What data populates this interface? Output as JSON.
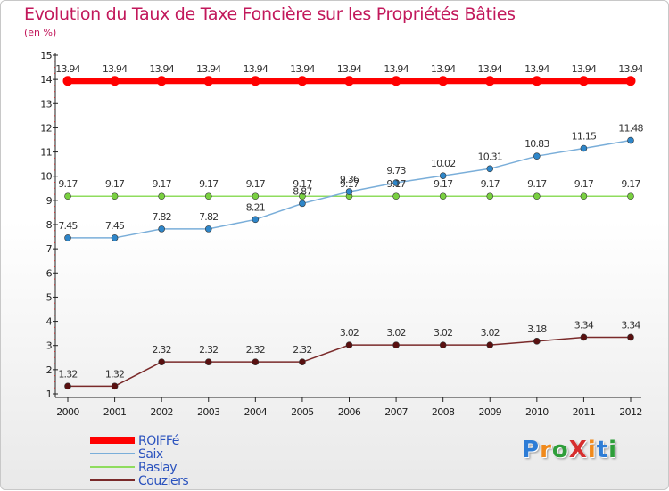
{
  "title": "Evolution du Taux de Taxe Foncière sur les Propriétés Bâties",
  "subtitle": "(en %)",
  "logo": {
    "text": "ProXiti",
    "colors": [
      "#2e7dd6",
      "#f08a1c",
      "#2e9e3a",
      "#d62e2e",
      "#f08a1c",
      "#2e7dd6",
      "#2e9e3a"
    ]
  },
  "chart_data": {
    "type": "line",
    "title": "Evolution du Taux de Taxe Foncière sur les Propriétés Bâties",
    "ylabel": "(en %)",
    "xlabel": "",
    "x": [
      "2000",
      "2001",
      "2002",
      "2003",
      "2004",
      "2005",
      "2006",
      "2007",
      "2008",
      "2009",
      "2010",
      "2011",
      "2012"
    ],
    "ylim": [
      1,
      15
    ],
    "yticks": [
      1,
      2,
      3,
      4,
      5,
      6,
      7,
      8,
      9,
      10,
      11,
      12,
      13,
      14,
      15
    ],
    "grid": false,
    "legend": "bottom-left",
    "series": [
      {
        "name": "ROIFFé",
        "color": "#ff0000",
        "marker": "#ff0000",
        "thick": true,
        "values": [
          13.94,
          13.94,
          13.94,
          13.94,
          13.94,
          13.94,
          13.94,
          13.94,
          13.94,
          13.94,
          13.94,
          13.94,
          13.94
        ],
        "labels": [
          "13.94",
          "13.94",
          "13.94",
          "13.94",
          "13.94",
          "13.94",
          "13.94",
          "13.94",
          "13.94",
          "13.94",
          "13.94",
          "13.94",
          "13.94"
        ]
      },
      {
        "name": "Saix",
        "color": "#7aaed9",
        "marker": "#2e86c9",
        "thick": false,
        "values": [
          7.45,
          7.45,
          7.82,
          7.82,
          8.21,
          8.87,
          9.36,
          9.73,
          10.02,
          10.31,
          10.83,
          11.15,
          11.48
        ],
        "labels": [
          "7.45",
          "7.45",
          "7.82",
          "7.82",
          "8.21",
          "8.87",
          "9.36",
          "9.73",
          "10.02",
          "10.31",
          "10.83",
          "11.15",
          "11.48"
        ]
      },
      {
        "name": "Raslay",
        "color": "#8fdc5e",
        "marker": "#79d040",
        "thick": false,
        "values": [
          9.17,
          9.17,
          9.17,
          9.17,
          9.17,
          9.17,
          9.17,
          9.17,
          9.17,
          9.17,
          9.17,
          9.17,
          9.17
        ],
        "labels": [
          "9.17",
          "9.17",
          "9.17",
          "9.17",
          "9.17",
          "9.17",
          "9.17",
          "9.17",
          "9.17",
          "9.17",
          "9.17",
          "9.17",
          "9.17"
        ]
      },
      {
        "name": "Couziers",
        "color": "#7a2a2a",
        "marker": "#5a1010",
        "thick": false,
        "values": [
          1.32,
          1.32,
          2.32,
          2.32,
          2.32,
          2.32,
          3.02,
          3.02,
          3.02,
          3.02,
          3.18,
          3.34,
          3.34
        ],
        "labels": [
          "1.32",
          "1.32",
          "2.32",
          "2.32",
          "2.32",
          "2.32",
          "3.02",
          "3.02",
          "3.02",
          "3.02",
          "3.18",
          "3.34",
          "3.34"
        ]
      }
    ]
  }
}
